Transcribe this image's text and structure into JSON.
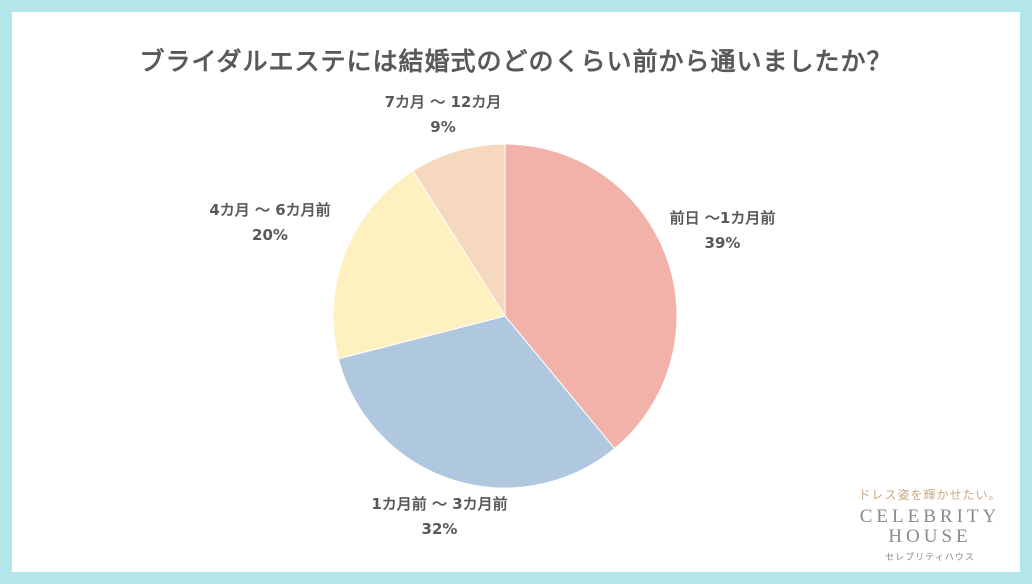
{
  "chart_data": {
    "type": "pie",
    "title": "ブライダルエステには結婚式のどのくらい前から通いましたか？",
    "slices": [
      {
        "label": "前日 〜1カ月前",
        "value": 39,
        "display": "39%",
        "color": "#f2b2aa"
      },
      {
        "label": "1カ月前 〜 3カ月前",
        "value": 32,
        "display": "32%",
        "color": "#afc8e0"
      },
      {
        "label": "4カ月 〜 6カ月前",
        "value": 20,
        "display": "20%",
        "color": "#fff1bf"
      },
      {
        "label": "7カ月 〜 12カ月",
        "value": 9,
        "display": "9%",
        "color": "#f5d8bd"
      }
    ],
    "start": "12 o'clock",
    "direction": "clockwise"
  },
  "logo": {
    "tagline": "ドレス姿を輝かせたい。",
    "line1": "CELEBRITY",
    "line2": "HOUSE",
    "kana": "セレブリティハウス"
  }
}
